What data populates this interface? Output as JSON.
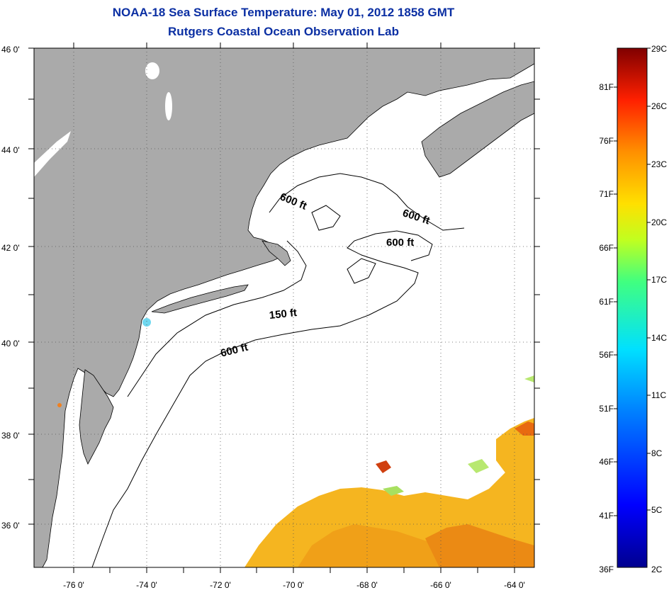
{
  "header": {
    "title": "NOAA-18 Sea Surface Temperature:  May 01, 2012 1858 GMT",
    "subtitle": "Rutgers Coastal Ocean Observation Lab"
  },
  "map": {
    "lat_labels": [
      "46 0'",
      "44 0'",
      "42 0'",
      "40 0'",
      "38 0'",
      "36 0'"
    ],
    "lon_labels": [
      "-76 0'",
      "-74 0'",
      "-72 0'",
      "-70 0'",
      "-68 0'",
      "-66 0'",
      "-64 0'"
    ],
    "contour_labels": [
      "600 ft",
      "600 ft",
      "600 ft",
      "150 ft",
      "600 ft"
    ],
    "colors": {
      "land": "#aaaaaa",
      "ocean": "#ffffff",
      "grid": "#555555"
    }
  },
  "colorbar": {
    "fahrenheit_labels": [
      "81F",
      "76F",
      "71F",
      "66F",
      "61F",
      "56F",
      "51F",
      "46F",
      "41F",
      "36F"
    ],
    "celsius_labels": [
      "29C",
      "26C",
      "23C",
      "20C",
      "17C",
      "14C",
      "11C",
      "8C",
      "5C",
      "2C"
    ]
  }
}
